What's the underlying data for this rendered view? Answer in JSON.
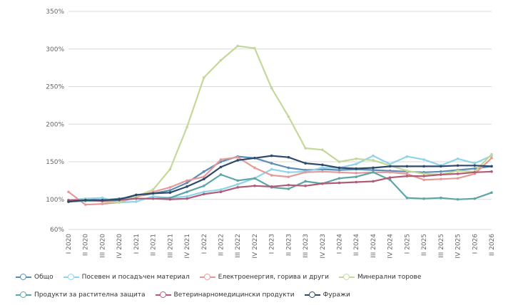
{
  "chart_data": {
    "type": "line",
    "title": "",
    "xlabel": "",
    "ylabel": "",
    "ylim": [
      60,
      350
    ],
    "yticks": [
      60,
      100,
      150,
      200,
      250,
      300,
      350
    ],
    "ytick_labels": [
      "60%",
      "100%",
      "150%",
      "200%",
      "250%",
      "300%",
      "350%"
    ],
    "grid": "horizontal",
    "legend_position": "bottom",
    "categories": [
      "I 2020",
      "II 2020",
      "III 2020",
      "IV 2020",
      "I 2021",
      "II 2021",
      "III 2021",
      "IV 2021",
      "I 2022",
      "II 2022",
      "III 2022",
      "IV 2022",
      "I 2023",
      "II 2023",
      "III 2023",
      "IV 2023",
      "I 2024",
      "II 2024",
      "III 2024",
      "IV 2024",
      "I 2025",
      "II 2025",
      "III 2025",
      "IV 2025",
      "I 2026",
      "II 2026"
    ],
    "series": [
      {
        "name": "Общо",
        "color": "#5b8db5",
        "values": [
          98,
          100,
          99,
          101,
          104,
          108,
          112,
          122,
          137,
          150,
          157,
          155,
          148,
          142,
          139,
          140,
          139,
          140,
          139,
          138,
          137,
          136,
          137,
          139,
          141,
          144
        ]
      },
      {
        "name": "Посевен и посадъчен материал",
        "color": "#8fd3ec",
        "values": [
          99,
          101,
          102,
          96,
          97,
          104,
          102,
          104,
          110,
          113,
          120,
          128,
          140,
          136,
          137,
          142,
          142,
          147,
          158,
          147,
          157,
          153,
          145,
          154,
          148,
          158
        ]
      },
      {
        "name": "Електроенергия, горива и други",
        "color": "#e59a9a",
        "values": [
          110,
          93,
          94,
          96,
          103,
          110,
          116,
          125,
          130,
          153,
          156,
          142,
          132,
          130,
          136,
          137,
          136,
          135,
          136,
          136,
          134,
          126,
          127,
          128,
          134,
          155
        ]
      },
      {
        "name": "Минерални торове",
        "color": "#c4d89a",
        "values": [
          97,
          100,
          97,
          96,
          104,
          113,
          140,
          196,
          262,
          285,
          304,
          301,
          248,
          210,
          168,
          166,
          150,
          154,
          152,
          145,
          138,
          134,
          133,
          138,
          137,
          160
        ]
      },
      {
        "name": "Продукти за растителна защита",
        "color": "#5da6a6",
        "values": [
          97,
          98,
          98,
          99,
          101,
          101,
          102,
          110,
          118,
          133,
          125,
          128,
          116,
          114,
          124,
          121,
          128,
          130,
          136,
          126,
          102,
          101,
          102,
          100,
          101,
          109
        ]
      },
      {
        "name": "Ветеринарномедицински продукти",
        "color": "#b05c76",
        "values": [
          99,
          99,
          98,
          99,
          101,
          101,
          100,
          101,
          107,
          110,
          116,
          118,
          117,
          119,
          118,
          121,
          122,
          123,
          124,
          129,
          131,
          131,
          133,
          134,
          136,
          137
        ]
      },
      {
        "name": "Фуражи",
        "color": "#2e4a6b",
        "values": [
          97,
          99,
          99,
          100,
          106,
          108,
          109,
          117,
          127,
          143,
          152,
          155,
          158,
          156,
          148,
          146,
          142,
          141,
          142,
          144,
          144,
          144,
          144,
          145,
          145,
          144
        ]
      }
    ]
  }
}
